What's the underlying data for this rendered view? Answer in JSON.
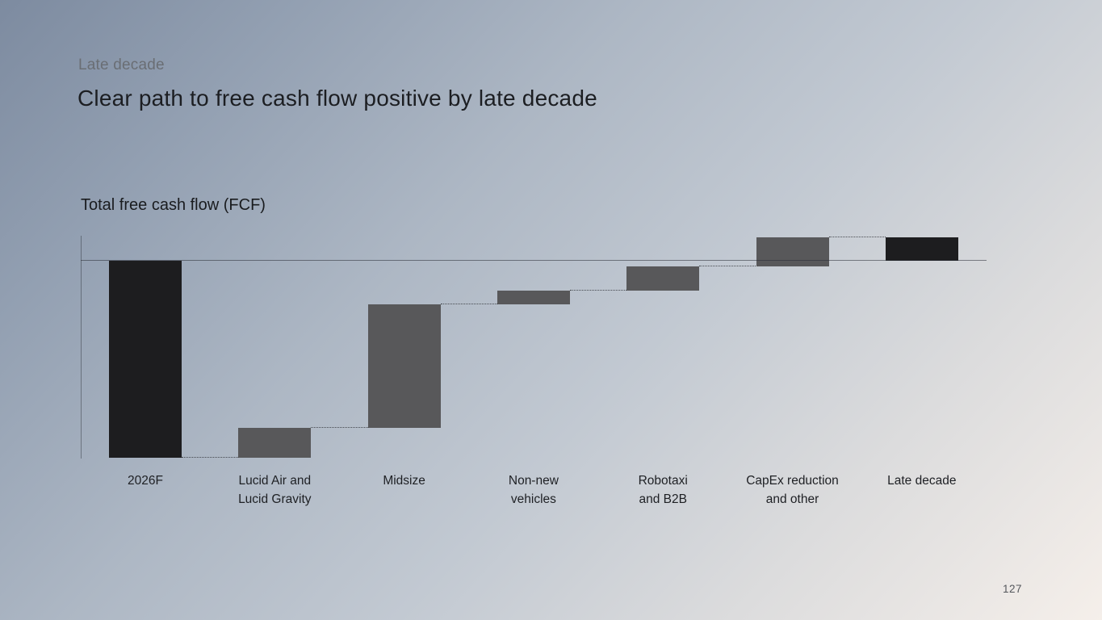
{
  "header": {
    "eyebrow": "Late decade",
    "title": "Clear path to free cash flow positive by late decade"
  },
  "chart": {
    "title": "Total free cash flow (FCF)"
  },
  "footer": {
    "page_number": "127"
  },
  "chart_data": {
    "type": "bar",
    "subtype": "waterfall",
    "title": "Total free cash flow (FCF)",
    "xlabel": "",
    "ylabel": "",
    "axis_values_shown": false,
    "value_note": "No numeric value labels are shown on the slide; values are estimated from bar geometry, normalized so the 2026F outflow equals -100.",
    "categories": [
      "2026F",
      "Lucid Air and\nLucid Gravity",
      "Midsize",
      "Non-new\nvehicles",
      "Robotaxi\nand B2B",
      "CapEx reduction\nand other",
      "Late decade"
    ],
    "bars": [
      {
        "label": "2026F",
        "start": 0,
        "end": -100,
        "role": "start-total",
        "color": "#1d1d1f"
      },
      {
        "label": "Lucid Air and\nLucid Gravity",
        "start": -100,
        "end": -85,
        "role": "increase",
        "color": "#58585a"
      },
      {
        "label": "Midsize",
        "start": -85,
        "end": -22,
        "role": "increase",
        "color": "#58585a"
      },
      {
        "label": "Non-new\nvehicles",
        "start": -22,
        "end": -15,
        "role": "increase",
        "color": "#58585a"
      },
      {
        "label": "Robotaxi\nand B2B",
        "start": -15,
        "end": -3,
        "role": "increase",
        "color": "#58585a"
      },
      {
        "label": "CapEx reduction\nand other",
        "start": -3,
        "end": 12,
        "role": "increase",
        "color": "#58585a"
      },
      {
        "label": "Late decade",
        "start": 0,
        "end": 12,
        "role": "end-total",
        "color": "#1d1d1f"
      }
    ],
    "baseline_value": 0,
    "connector_style": "dotted",
    "grid": "off",
    "legend": "none",
    "colors": {
      "total_bar": "#1d1d1f",
      "delta_bar": "#58585a"
    }
  }
}
